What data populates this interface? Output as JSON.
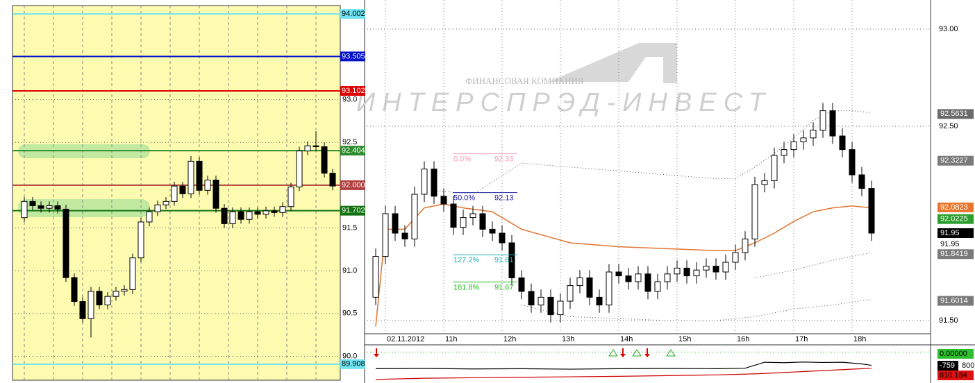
{
  "watermark": {
    "company": "ФИНАНСОВАЯ КОМПАНИЯ",
    "brand": "ИНТЕРСПРЭД-ИНВЕСТ"
  },
  "chart_data": [
    {
      "type": "candlestick",
      "ylim": [
        89.72,
        94.1
      ],
      "yticks": [
        {
          "value": 93,
          "label": "93.0"
        },
        {
          "value": 92.5,
          "label": "92.5"
        },
        {
          "value": 91.5,
          "label": "91.5"
        },
        {
          "value": 91,
          "label": "91.0"
        },
        {
          "value": 90.5,
          "label": "90.5"
        },
        {
          "value": 90,
          "label": "90.0"
        }
      ],
      "grid": true,
      "levels": [
        {
          "value": 94.002,
          "color": "#6fe3f2"
        },
        {
          "value": 93.505,
          "color": "#0010c8"
        },
        {
          "value": 93.102,
          "color": "#dd0000"
        },
        {
          "value": 92.404,
          "color": "#2e8b2e"
        },
        {
          "value": 92,
          "label": "92.000",
          "color": "#b04040"
        },
        {
          "value": 91.702,
          "color": "#137313"
        },
        {
          "value": 89.908,
          "color": "#6fe3f2"
        }
      ],
      "open": [
        91.62,
        91.81,
        91.76,
        91.73,
        91.76,
        91.72,
        90.92,
        90.64,
        90.44,
        90.76,
        90.6,
        90.7,
        90.76,
        90.78,
        91.15,
        91.57,
        91.69,
        91.77,
        91.81,
        91.99,
        91.9,
        92.28,
        91.94,
        92.06,
        91.73,
        91.55,
        91.69,
        91.6,
        91.69,
        91.66,
        91.7,
        91.68,
        91.75,
        91.98,
        92.4,
        92.46,
        92.45,
        92.14
      ],
      "high": [
        91.86,
        91.86,
        91.81,
        91.81,
        91.81,
        91.77,
        90.97,
        90.69,
        90.81,
        90.81,
        90.75,
        90.81,
        90.83,
        91.2,
        91.62,
        91.74,
        91.82,
        91.86,
        92.04,
        92.04,
        92.34,
        92.33,
        92.11,
        92.11,
        91.78,
        91.74,
        91.74,
        91.74,
        91.74,
        91.75,
        91.75,
        91.8,
        92.03,
        92.45,
        92.51,
        92.63,
        92.5,
        92.19
      ],
      "low": [
        91.57,
        91.71,
        91.68,
        91.68,
        91.67,
        90.87,
        90.59,
        90.39,
        90.22,
        90.55,
        90.55,
        90.65,
        90.71,
        90.73,
        91.1,
        91.52,
        91.64,
        91.72,
        91.76,
        91.85,
        91.85,
        91.89,
        91.89,
        91.68,
        91.5,
        91.5,
        91.55,
        91.55,
        91.61,
        91.61,
        91.63,
        91.63,
        91.7,
        91.93,
        92.35,
        92.4,
        92.09,
        91.94
      ],
      "close": [
        91.81,
        91.76,
        91.73,
        91.76,
        91.72,
        90.92,
        90.64,
        90.44,
        90.76,
        90.6,
        90.7,
        90.76,
        90.78,
        91.15,
        91.57,
        91.69,
        91.77,
        91.81,
        91.99,
        91.9,
        92.28,
        91.94,
        92.06,
        91.73,
        91.55,
        91.69,
        91.6,
        91.69,
        91.66,
        91.7,
        91.68,
        91.75,
        91.98,
        92.4,
        92.46,
        92.45,
        92.14,
        91.99
      ]
    },
    {
      "type": "candlestick",
      "ylim": [
        91.425,
        93.15
      ],
      "yticks": [
        {
          "value": 93,
          "label": "93.00"
        },
        {
          "value": 92.5,
          "label": "92.50"
        },
        {
          "value": 91.5,
          "label": "91.50"
        }
      ],
      "grid": true,
      "categories": [
        null,
        "02.11.2012",
        null,
        null,
        null,
        null,
        null,
        "11h",
        null,
        null,
        null,
        null,
        null,
        "12h",
        null,
        null,
        null,
        null,
        null,
        "13h",
        null,
        null,
        null,
        null,
        null,
        "14h",
        null,
        null,
        null,
        null,
        null,
        "15h",
        null,
        null,
        null,
        null,
        null,
        "16h",
        null,
        null,
        null,
        null,
        null,
        "17h",
        null,
        null,
        null,
        null,
        null,
        "18h",
        null,
        null
      ],
      "open": [
        91.62,
        91.83,
        92.05,
        91.95,
        91.92,
        92.15,
        92.28,
        92.14,
        92.1,
        91.98,
        92.03,
        92.05,
        91.97,
        91.95,
        91.9,
        91.72,
        91.65,
        91.58,
        91.62,
        91.53,
        91.6,
        91.68,
        91.72,
        91.62,
        91.58,
        91.75,
        91.73,
        91.7,
        91.74,
        91.65,
        91.7,
        91.74,
        91.77,
        91.73,
        91.76,
        91.78,
        91.75,
        91.8,
        91.85,
        91.92,
        92.2,
        92.22,
        92.35,
        92.38,
        92.42,
        92.44,
        92.48,
        92.58,
        92.45,
        92.38,
        92.25,
        92.18
      ],
      "high": [
        91.87,
        92.09,
        92.09,
        91.99,
        92.19,
        92.32,
        92.32,
        92.18,
        92.14,
        92.07,
        92.09,
        92.09,
        92.01,
        91.99,
        91.94,
        91.76,
        91.69,
        91.66,
        91.66,
        91.64,
        91.72,
        91.76,
        91.76,
        91.66,
        91.79,
        91.79,
        91.77,
        91.78,
        91.78,
        91.74,
        91.78,
        91.81,
        91.81,
        91.8,
        91.82,
        91.82,
        91.84,
        91.89,
        91.96,
        92.24,
        92.26,
        92.39,
        92.42,
        92.46,
        92.48,
        92.52,
        92.62,
        92.62,
        92.49,
        92.42,
        92.29,
        92.22
      ],
      "low": [
        91.58,
        91.79,
        91.91,
        91.88,
        91.88,
        92.11,
        92.1,
        92.06,
        91.94,
        91.94,
        91.99,
        91.93,
        91.91,
        91.86,
        91.68,
        91.61,
        91.54,
        91.54,
        91.49,
        91.49,
        91.56,
        91.64,
        91.58,
        91.54,
        91.54,
        91.69,
        91.66,
        91.66,
        91.61,
        91.61,
        91.66,
        91.7,
        91.69,
        91.69,
        91.72,
        91.71,
        91.71,
        91.76,
        91.81,
        91.88,
        92.16,
        92.18,
        92.31,
        92.34,
        92.38,
        92.4,
        92.44,
        92.41,
        92.34,
        92.21,
        92.14,
        91.91
      ],
      "close": [
        91.83,
        92.05,
        91.95,
        91.92,
        92.15,
        92.28,
        92.14,
        92.1,
        91.98,
        92.03,
        92.05,
        91.97,
        91.95,
        91.9,
        91.72,
        91.65,
        91.58,
        91.62,
        91.53,
        91.6,
        91.68,
        91.72,
        91.62,
        91.58,
        91.75,
        91.73,
        91.7,
        91.74,
        91.65,
        91.7,
        91.74,
        91.77,
        91.73,
        91.76,
        91.78,
        91.75,
        91.8,
        91.85,
        91.92,
        92.2,
        92.22,
        92.35,
        92.38,
        92.42,
        92.44,
        92.48,
        92.58,
        92.45,
        92.38,
        92.25,
        92.18,
        91.95
      ],
      "lines": [
        {
          "color": "#e2742f",
          "dash": false,
          "x": [
            0,
            1,
            3,
            5,
            7,
            9,
            12,
            15,
            20,
            25,
            30,
            35,
            37,
            39,
            41,
            43,
            45,
            47,
            49,
            51
          ],
          "values": [
            91.47,
            91.97,
            91.97,
            92.08,
            92.1,
            92.08,
            92.06,
            91.97,
            91.9,
            91.88,
            91.87,
            91.86,
            91.86,
            91.9,
            91.95,
            92.01,
            92.06,
            92.08,
            92.09,
            92.08
          ]
        },
        {
          "color": "#555555",
          "dash": true,
          "x": [
            6,
            10,
            15,
            20,
            25,
            30,
            35,
            37,
            39,
            41,
            43,
            45,
            47,
            49,
            51
          ],
          "values": [
            92.17,
            92.15,
            92.31,
            92.29,
            92.27,
            92.25,
            92.23,
            92.23,
            92.29,
            92.36,
            92.44,
            92.53,
            92.58,
            92.58,
            92.57
          ]
        },
        {
          "color": "#555555",
          "dash": true,
          "x": [
            15,
            20,
            25,
            30,
            35,
            39,
            43,
            47,
            51
          ],
          "values": [
            91.58,
            91.52,
            91.51,
            91.5,
            91.5,
            91.52,
            91.56,
            91.58,
            91.61
          ]
        },
        {
          "color": "#555555",
          "dash": true,
          "x": [
            39,
            43,
            47,
            51
          ],
          "values": [
            91.72,
            91.76,
            91.81,
            91.85
          ]
        }
      ],
      "fib": [
        {
          "label": "0.0%",
          "value": 92.33,
          "color": "#f2a0b4"
        },
        {
          "label": "50.0%",
          "value": 92.13,
          "color": "#1a1aa0"
        },
        {
          "label": "127.2%",
          "value": 91.81,
          "color": "#1fb0b8"
        },
        {
          "label": "161.8%",
          "value": 91.67,
          "color": "#22c022"
        }
      ],
      "price_labels": [
        {
          "value": 92.5631,
          "color": "#6a6a6a"
        },
        {
          "value": 92.3227,
          "color": "#7a7a7a"
        },
        {
          "value": 92.0823,
          "color": "#e8772e"
        },
        {
          "value": 92.0225,
          "color": "#2e9e2e"
        },
        {
          "value": 91.95,
          "color": "#000000"
        },
        {
          "value": 91.8419,
          "color": "#7a7a7a"
        },
        {
          "value": 91.6014,
          "color": "#7a7a7a"
        }
      ],
      "last_price": 91.95
    },
    {
      "type": "line",
      "ylim": [
        -1300,
        300
      ],
      "x": [
        0,
        5,
        10,
        15,
        20,
        25,
        30,
        35,
        38,
        40,
        42,
        44,
        46,
        48,
        50,
        51
      ],
      "series": [
        {
          "color": "#000000",
          "values": [
            -700,
            -690,
            -710,
            -700,
            -720,
            -700,
            -690,
            -700,
            -680,
            -430,
            -450,
            -420,
            -440,
            -430,
            -500,
            -560
          ]
        },
        {
          "color": "#cc0000",
          "values": [
            -1150,
            -1100,
            -1080,
            -1060,
            -1040,
            -1020,
            -990,
            -960,
            -930,
            -900,
            -860,
            -820,
            -780,
            -740,
            -700,
            -680
          ]
        }
      ],
      "right_labels": [
        "0.00000",
        "-759",
        "800",
        "810.184"
      ]
    }
  ]
}
